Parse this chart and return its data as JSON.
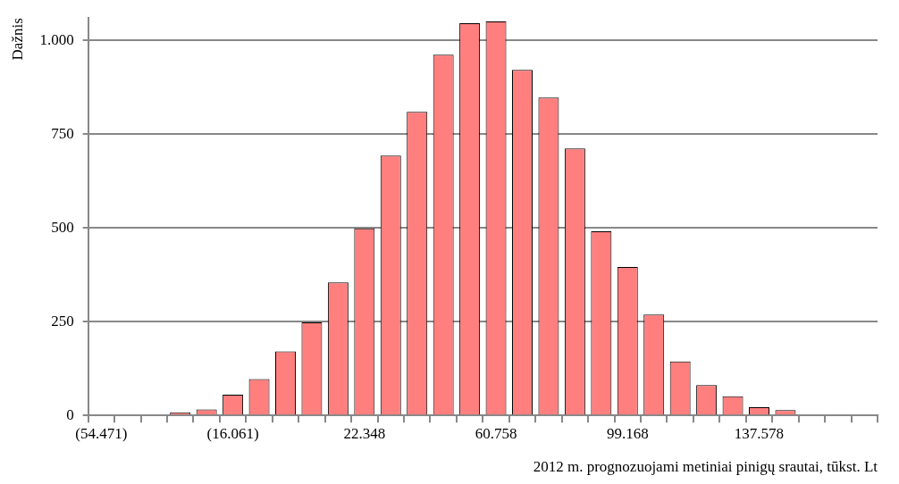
{
  "chart_data": {
    "type": "bar",
    "xlabel": "2012 m. prognozuojami metiniai pinigų srautai, tūkst. Lt",
    "ylabel": "Dažnis",
    "categories": [
      "(54.471)",
      null,
      null,
      null,
      null,
      "(16.061)",
      null,
      null,
      null,
      null,
      "22.348",
      null,
      null,
      null,
      null,
      "60.758",
      null,
      null,
      null,
      null,
      "99.168",
      null,
      null,
      null,
      null,
      "137.578",
      null,
      null,
      null,
      null
    ],
    "values": [
      0,
      0,
      0,
      8,
      16,
      55,
      97,
      171,
      248,
      355,
      499,
      693,
      810,
      962,
      1046,
      1051,
      922,
      848,
      712,
      491,
      396,
      269,
      144,
      81,
      51,
      22,
      14,
      0,
      0,
      0
    ],
    "color": "#ff7f7f",
    "ylim": [
      0,
      1060
    ],
    "yticks": [
      0,
      250,
      500,
      750,
      {
        "value": 1000,
        "label": "1.000"
      }
    ],
    "grid": "y"
  }
}
